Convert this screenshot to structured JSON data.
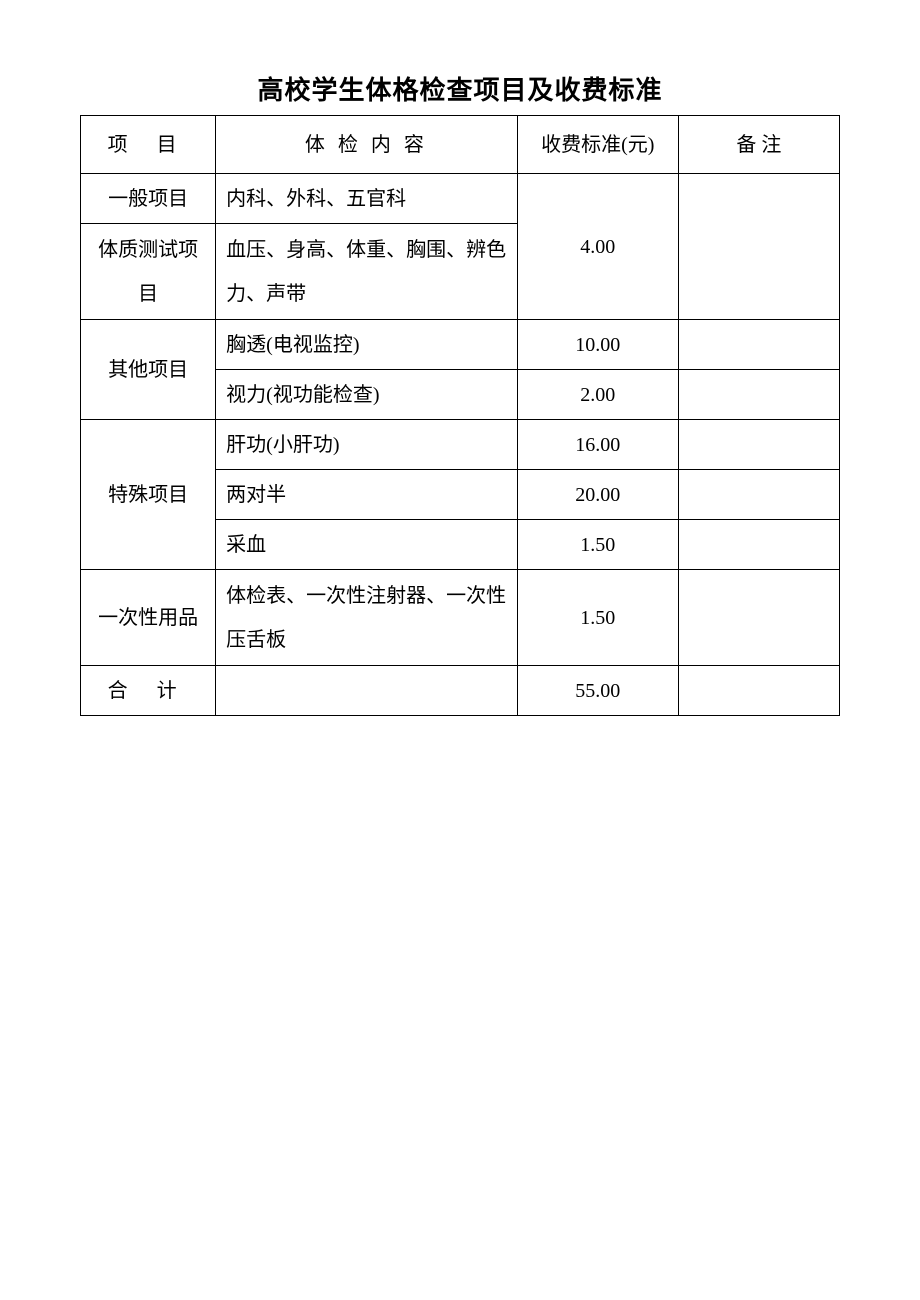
{
  "title": "高校学生体格检查项目及收费标准",
  "headers": {
    "project": "项 目",
    "content": "体 检 内 容",
    "fee": "收费标准(元)",
    "note": "备    注"
  },
  "rows": {
    "general": {
      "project": "一般项目",
      "content": "内科、外科、五官科"
    },
    "constitution": {
      "project": "体质测试项目",
      "content": "血压、身高、体重、胸围、辨色力、声带"
    },
    "general_fee": "4.00",
    "other_project": "其他项目",
    "other1": {
      "content": "胸透(电视监控)",
      "fee": "10.00"
    },
    "other2": {
      "content": "视力(视功能检查)",
      "fee": "2.00"
    },
    "special_project": "特殊项目",
    "special1": {
      "content": "肝功(小肝功)",
      "fee": "16.00"
    },
    "special2": {
      "content": "两对半",
      "fee": "20.00"
    },
    "special3": {
      "content": "采血",
      "fee": "1.50"
    },
    "disposable": {
      "project": "一次性用品",
      "content": "体检表、一次性注射器、一次性压舌板",
      "fee": "1.50"
    },
    "total": {
      "project": "合 计",
      "fee": "55.00"
    }
  },
  "styling": {
    "background_color": "#ffffff",
    "border_color": "#000000",
    "text_color": "#000000",
    "title_fontsize": 26,
    "body_fontsize": 20,
    "font_family": "SimSun",
    "col_widths": {
      "project": 130,
      "content": 290,
      "fee": 155,
      "note": 155
    },
    "row_heights": {
      "header": 58,
      "single": 50,
      "tall": 96
    }
  }
}
